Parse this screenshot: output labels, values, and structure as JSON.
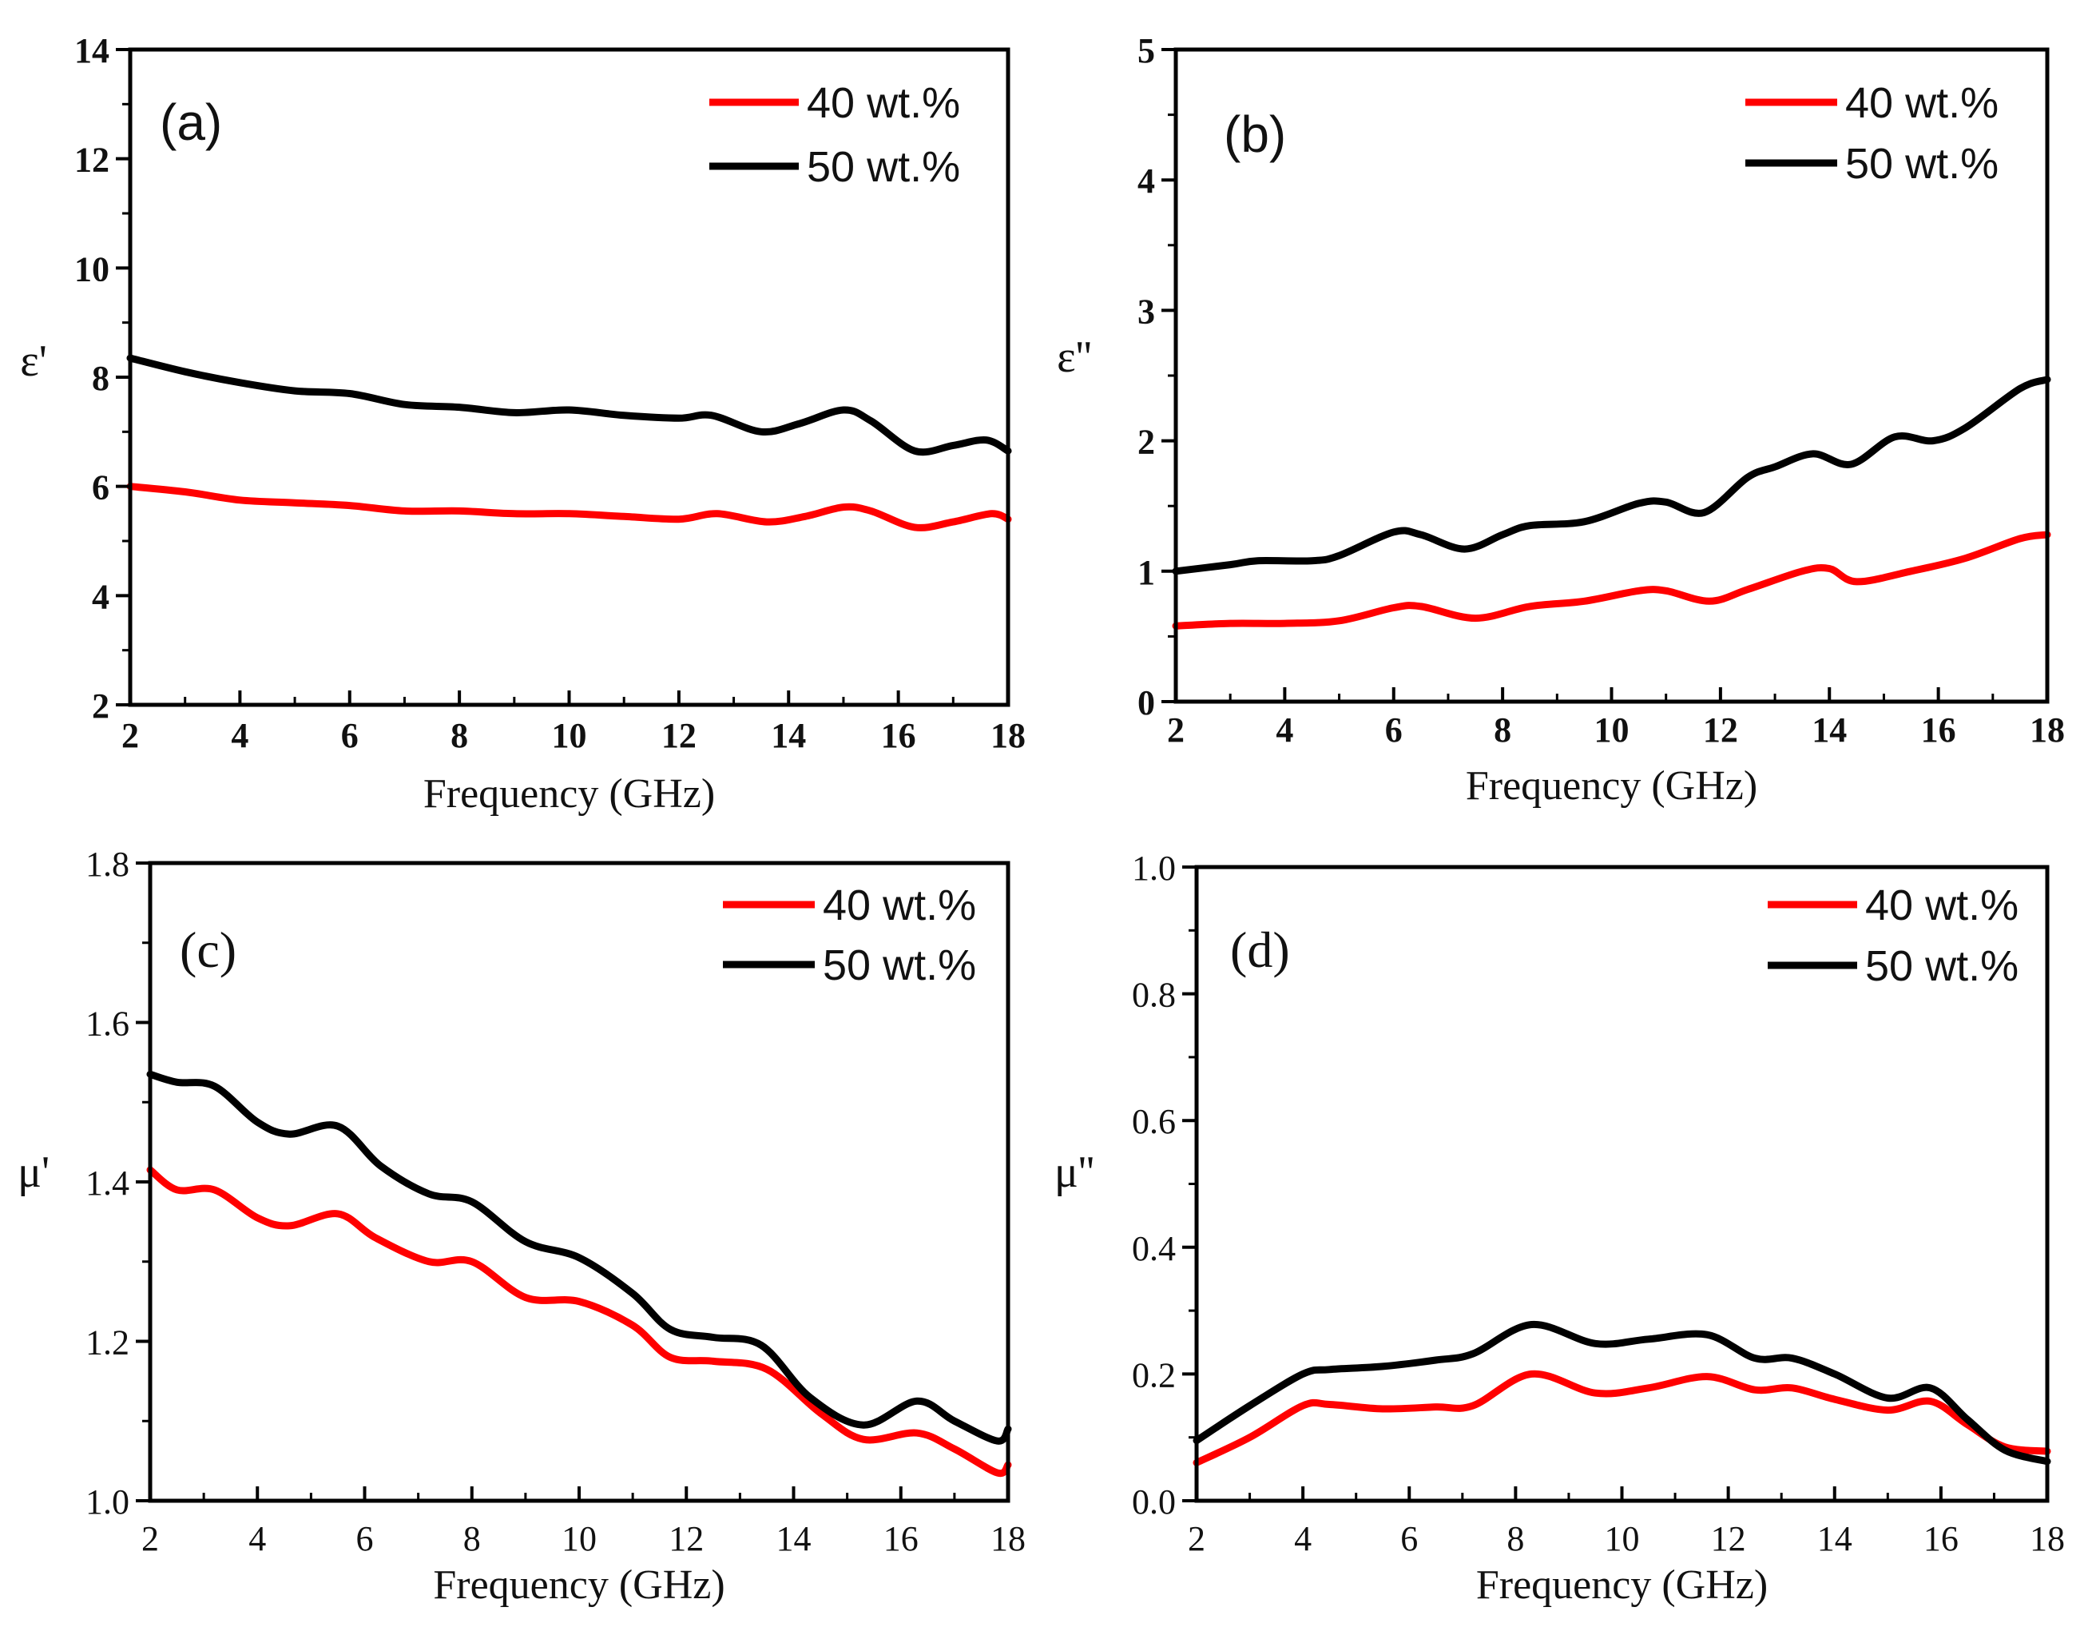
{
  "colors": {
    "series_40": "#ff0000",
    "series_50": "#000000",
    "axis": "#000000"
  },
  "chart_data": [
    {
      "panel": "(a)",
      "type": "line",
      "xlabel": "Frequency (GHz)",
      "ylabel": "ε'",
      "xlim": [
        2,
        18
      ],
      "ylim": [
        2,
        14
      ],
      "xticks": [
        2,
        4,
        6,
        8,
        10,
        12,
        14,
        16,
        18
      ],
      "yticks": [
        2,
        4,
        6,
        8,
        10,
        12,
        14
      ],
      "legend": {
        "placement": "top-right",
        "entries": [
          "40 wt.%",
          "50 wt.%"
        ]
      },
      "series": [
        {
          "name": "40 wt.%",
          "color": "#ff0000",
          "x": [
            2,
            3,
            4,
            5,
            6,
            7,
            8,
            9,
            10,
            11,
            12,
            12.7,
            13.6,
            14.3,
            15,
            15.5,
            16.3,
            17,
            17.7,
            18
          ],
          "y": [
            6.0,
            5.9,
            5.75,
            5.7,
            5.65,
            5.55,
            5.55,
            5.5,
            5.5,
            5.45,
            5.4,
            5.5,
            5.35,
            5.45,
            5.62,
            5.55,
            5.25,
            5.35,
            5.5,
            5.4
          ]
        },
        {
          "name": "50 wt.%",
          "color": "#000000",
          "x": [
            2,
            3,
            4,
            5,
            6,
            7,
            8,
            9,
            10,
            11,
            12,
            12.6,
            13.5,
            14.2,
            15,
            15.5,
            16.3,
            17,
            17.6,
            18
          ],
          "y": [
            8.35,
            8.1,
            7.9,
            7.75,
            7.7,
            7.5,
            7.45,
            7.35,
            7.4,
            7.3,
            7.25,
            7.3,
            7.0,
            7.15,
            7.4,
            7.2,
            6.65,
            6.75,
            6.85,
            6.65
          ]
        }
      ]
    },
    {
      "panel": "(b)",
      "type": "line",
      "xlabel": "Frequency (GHz)",
      "ylabel": "ε''",
      "xlim": [
        2,
        18
      ],
      "ylim": [
        0,
        5
      ],
      "xticks": [
        2,
        4,
        6,
        8,
        10,
        12,
        14,
        16,
        18
      ],
      "yticks": [
        0,
        1,
        2,
        3,
        4,
        5
      ],
      "legend": {
        "placement": "top-right",
        "entries": [
          "40 wt.%",
          "50 wt.%"
        ]
      },
      "series": [
        {
          "name": "40 wt.%",
          "color": "#ff0000",
          "x": [
            2,
            3,
            4,
            5,
            6,
            6.5,
            7.5,
            8.5,
            9.5,
            10.5,
            11,
            11.8,
            12.5,
            13.5,
            14,
            14.5,
            15.5,
            16.5,
            17.5,
            18
          ],
          "y": [
            0.58,
            0.6,
            0.6,
            0.62,
            0.72,
            0.73,
            0.64,
            0.73,
            0.77,
            0.85,
            0.85,
            0.77,
            0.86,
            1.0,
            1.02,
            0.92,
            1.0,
            1.1,
            1.25,
            1.28
          ]
        },
        {
          "name": "50 wt.%",
          "color": "#000000",
          "x": [
            2,
            3,
            3.5,
            4.5,
            5,
            6,
            6.5,
            7.3,
            8,
            8.5,
            9.5,
            10.5,
            11,
            11.7,
            12.5,
            13,
            13.7,
            14.4,
            15.2,
            15.9,
            16.5,
            17.5,
            18
          ],
          "y": [
            1.0,
            1.05,
            1.08,
            1.08,
            1.12,
            1.3,
            1.28,
            1.17,
            1.28,
            1.35,
            1.38,
            1.52,
            1.53,
            1.45,
            1.72,
            1.8,
            1.9,
            1.82,
            2.03,
            2.0,
            2.1,
            2.4,
            2.47
          ]
        }
      ]
    },
    {
      "panel": "(c)",
      "type": "line",
      "xlabel": "Frequency (GHz)",
      "ylabel": "μ'",
      "xlim": [
        2,
        18
      ],
      "ylim": [
        1.0,
        1.8
      ],
      "xticks": [
        2,
        4,
        6,
        8,
        10,
        12,
        14,
        16,
        18
      ],
      "yticks": [
        1.0,
        1.2,
        1.4,
        1.6,
        1.8
      ],
      "legend": {
        "placement": "top-right",
        "entries": [
          "40 wt.%",
          "50 wt.%"
        ]
      },
      "series": [
        {
          "name": "40 wt.%",
          "color": "#ff0000",
          "x": [
            2,
            2.5,
            3.2,
            4,
            4.6,
            5.5,
            6.2,
            7.2,
            8,
            9,
            10,
            11,
            11.7,
            12.5,
            13.5,
            14.5,
            15.3,
            16.3,
            17,
            17.8,
            18
          ],
          "y": [
            1.415,
            1.39,
            1.39,
            1.355,
            1.345,
            1.36,
            1.33,
            1.3,
            1.3,
            1.255,
            1.25,
            1.22,
            1.18,
            1.175,
            1.165,
            1.11,
            1.077,
            1.085,
            1.065,
            1.035,
            1.045
          ]
        },
        {
          "name": "50 wt.%",
          "color": "#000000",
          "x": [
            2,
            2.5,
            3.2,
            4,
            4.6,
            5.5,
            6.3,
            7.2,
            8,
            9,
            10,
            11,
            11.7,
            12.5,
            13.4,
            14.3,
            15.3,
            16.3,
            17,
            17.8,
            18
          ],
          "y": [
            1.535,
            1.525,
            1.52,
            1.475,
            1.46,
            1.47,
            1.42,
            1.385,
            1.375,
            1.325,
            1.305,
            1.26,
            1.215,
            1.205,
            1.195,
            1.13,
            1.095,
            1.125,
            1.1,
            1.075,
            1.09
          ]
        }
      ]
    },
    {
      "panel": "(d)",
      "type": "line",
      "xlabel": "Frequency (GHz)",
      "ylabel": "μ''",
      "xlim": [
        2,
        18
      ],
      "ylim": [
        0.0,
        1.0
      ],
      "xticks": [
        2,
        4,
        6,
        8,
        10,
        12,
        14,
        16,
        18
      ],
      "yticks": [
        0.0,
        0.2,
        0.4,
        0.6,
        0.8,
        1.0
      ],
      "legend": {
        "placement": "top-right",
        "entries": [
          "40 wt.%",
          "50 wt.%"
        ]
      },
      "series": [
        {
          "name": "40 wt.%",
          "color": "#ff0000",
          "x": [
            2,
            3,
            4,
            4.5,
            5.5,
            6.5,
            7.2,
            8.3,
            9.5,
            10.5,
            11.6,
            12.5,
            13.2,
            14,
            15,
            15.8,
            16.5,
            17.2,
            18
          ],
          "y": [
            0.06,
            0.1,
            0.15,
            0.152,
            0.145,
            0.148,
            0.15,
            0.2,
            0.17,
            0.178,
            0.196,
            0.175,
            0.178,
            0.16,
            0.143,
            0.157,
            0.12,
            0.085,
            0.078
          ]
        },
        {
          "name": "50 wt.%",
          "color": "#000000",
          "x": [
            2,
            3,
            4,
            4.5,
            5.5,
            6.5,
            7.2,
            8.3,
            9.5,
            10.5,
            11.6,
            12.5,
            13.2,
            14,
            15,
            15.8,
            16.5,
            17.2,
            18
          ],
          "y": [
            0.095,
            0.15,
            0.2,
            0.207,
            0.212,
            0.222,
            0.232,
            0.278,
            0.248,
            0.255,
            0.262,
            0.225,
            0.225,
            0.2,
            0.162,
            0.178,
            0.128,
            0.08,
            0.062
          ]
        }
      ]
    }
  ]
}
